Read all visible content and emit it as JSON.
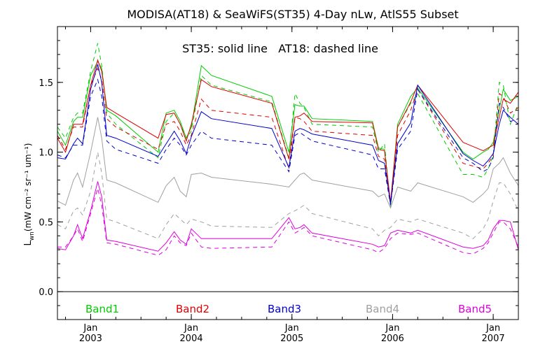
{
  "chart_data": {
    "type": "line",
    "title": "MODISA(AT18) & SeaWiFS(ST35) 4-Day nLw, AtlS55 Subset",
    "annotation": "ST35: solid line   AT18: dashed line",
    "ylabel": "L",
    "ylabel_sub": "wn",
    "ylabel_units": " (mW cm",
    "ylabel_units_full": "(mW cm⁻² sr⁻¹ um⁻¹)",
    "xlim": [
      2002.67,
      2007.25
    ],
    "ylim": [
      -0.2,
      1.9
    ],
    "yticks": [
      0.0,
      0.5,
      1.0,
      1.5
    ],
    "ytick_labels": [
      "0.0",
      "0.5",
      "1.0",
      "1.5"
    ],
    "xticks": [
      {
        "year": 2003,
        "label_top": "Jan",
        "label_bottom": "2003"
      },
      {
        "year": 2004,
        "label_top": "Jan",
        "label_bottom": "2004"
      },
      {
        "year": 2005,
        "label_top": "Jan",
        "label_bottom": "2005"
      },
      {
        "year": 2006,
        "label_top": "Jan",
        "label_bottom": "2006"
      },
      {
        "year": 2007,
        "label_top": "Jan",
        "label_bottom": "2007"
      }
    ],
    "reference_line": 0.0,
    "legend": [
      {
        "name": "Band1",
        "color": "#00cc00"
      },
      {
        "name": "Band2",
        "color": "#dd0000"
      },
      {
        "name": "Band3",
        "color": "#0000cc"
      },
      {
        "name": "Band4",
        "color": "#a0a0a0"
      },
      {
        "name": "Band5",
        "color": "#dd00dd"
      }
    ],
    "x": [
      2002.67,
      2002.75,
      2002.83,
      2002.87,
      2002.92,
      2003.0,
      2003.07,
      2003.11,
      2003.16,
      2003.25,
      2003.67,
      2003.75,
      2003.83,
      2003.89,
      2003.95,
      2004.0,
      2004.1,
      2004.2,
      2004.8,
      2004.97,
      2005.03,
      2005.08,
      2005.12,
      2005.2,
      2005.8,
      2005.86,
      2005.92,
      2005.98,
      2006.05,
      2006.18,
      2006.25,
      2006.7,
      2006.8,
      2006.9,
      2006.95,
      2007.0,
      2007.06,
      2007.1,
      2007.17,
      2007.25
    ],
    "series": [
      {
        "band": 1,
        "sensor": "ST35",
        "color": "#00cc00",
        "dashed": false,
        "values": [
          1.15,
          1.05,
          1.22,
          1.25,
          1.25,
          1.55,
          1.65,
          1.6,
          1.3,
          1.26,
          1.0,
          1.28,
          1.3,
          1.22,
          1.1,
          1.18,
          1.62,
          1.55,
          1.4,
          1.0,
          1.34,
          1.33,
          1.33,
          1.24,
          1.22,
          1.03,
          1.02,
          0.62,
          1.2,
          1.4,
          1.46,
          1.0,
          0.95,
          1.0,
          1.02,
          1.07,
          1.3,
          1.45,
          1.37,
          1.4
        ]
      },
      {
        "band": 1,
        "sensor": "AT18",
        "color": "#00cc00",
        "dashed": true,
        "values": [
          1.18,
          1.1,
          1.25,
          1.28,
          1.28,
          1.58,
          1.78,
          1.62,
          1.28,
          1.2,
          0.96,
          1.22,
          1.28,
          1.2,
          1.1,
          1.15,
          1.55,
          1.48,
          1.36,
          0.96,
          1.42,
          1.35,
          1.32,
          1.2,
          1.18,
          1.0,
          1.06,
          0.6,
          1.18,
          1.35,
          1.42,
          0.84,
          0.84,
          0.82,
          0.88,
          0.98,
          1.5,
          1.48,
          1.2,
          1.35
        ]
      },
      {
        "band": 2,
        "sensor": "ST35",
        "color": "#dd0000",
        "dashed": false,
        "values": [
          1.1,
          1.0,
          1.2,
          1.2,
          1.2,
          1.48,
          1.66,
          1.58,
          1.32,
          1.28,
          1.1,
          1.27,
          1.28,
          1.2,
          1.08,
          1.2,
          1.52,
          1.47,
          1.35,
          0.95,
          1.25,
          1.26,
          1.28,
          1.22,
          1.21,
          1.02,
          1.01,
          0.64,
          1.18,
          1.36,
          1.48,
          1.07,
          1.04,
          1.01,
          1.03,
          1.05,
          1.25,
          1.38,
          1.35,
          1.43
        ]
      },
      {
        "band": 2,
        "sensor": "AT18",
        "color": "#dd0000",
        "dashed": true,
        "values": [
          1.12,
          1.02,
          1.18,
          1.18,
          1.18,
          1.48,
          1.6,
          1.52,
          1.24,
          1.18,
          1.02,
          1.2,
          1.22,
          1.15,
          1.05,
          1.12,
          1.38,
          1.3,
          1.25,
          0.88,
          1.25,
          1.24,
          1.22,
          1.15,
          1.12,
          0.97,
          0.95,
          0.62,
          1.12,
          1.3,
          1.45,
          0.92,
          0.9,
          0.88,
          0.92,
          0.98,
          1.42,
          1.4,
          1.28,
          1.32
        ]
      },
      {
        "band": 3,
        "sensor": "ST35",
        "color": "#0000cc",
        "dashed": false,
        "values": [
          0.96,
          0.95,
          1.06,
          1.1,
          1.06,
          1.45,
          1.63,
          1.5,
          1.12,
          1.1,
          0.97,
          1.06,
          1.15,
          1.08,
          0.99,
          1.11,
          1.29,
          1.24,
          1.17,
          0.89,
          1.15,
          1.17,
          1.16,
          1.13,
          1.05,
          0.94,
          0.92,
          0.63,
          1.06,
          1.21,
          1.48,
          0.99,
          0.94,
          0.9,
          0.94,
          0.99,
          1.2,
          1.3,
          1.25,
          1.2
        ]
      },
      {
        "band": 3,
        "sensor": "AT18",
        "color": "#0000cc",
        "dashed": true,
        "values": [
          0.98,
          0.96,
          1.05,
          1.05,
          1.05,
          1.4,
          1.52,
          1.4,
          1.08,
          1.02,
          0.92,
          1.02,
          1.1,
          1.05,
          0.98,
          1.05,
          1.15,
          1.1,
          1.05,
          0.86,
          1.12,
          1.14,
          1.12,
          1.08,
          0.98,
          0.88,
          0.88,
          0.62,
          1.02,
          1.15,
          1.45,
          0.96,
          0.92,
          0.86,
          0.88,
          0.96,
          1.35,
          1.32,
          1.22,
          1.24
        ]
      },
      {
        "band": 4,
        "sensor": "ST35",
        "color": "#a0a0a0",
        "dashed": false,
        "values": [
          0.65,
          0.62,
          0.8,
          0.85,
          0.75,
          1.0,
          1.25,
          1.1,
          0.8,
          0.78,
          0.64,
          0.76,
          0.82,
          0.72,
          0.68,
          0.84,
          0.85,
          0.82,
          0.77,
          0.75,
          0.8,
          0.84,
          0.85,
          0.8,
          0.72,
          0.68,
          0.7,
          0.6,
          0.75,
          0.72,
          0.78,
          0.68,
          0.64,
          0.7,
          0.74,
          0.88,
          0.92,
          0.96,
          0.85,
          0.76
        ]
      },
      {
        "band": 4,
        "sensor": "AT18",
        "color": "#a0a0a0",
        "dashed": true,
        "values": [
          0.48,
          0.45,
          0.58,
          0.6,
          0.55,
          0.72,
          1.0,
          0.85,
          0.52,
          0.5,
          0.38,
          0.48,
          0.56,
          0.52,
          0.48,
          0.52,
          0.5,
          0.47,
          0.46,
          0.56,
          0.58,
          0.6,
          0.62,
          0.56,
          0.45,
          0.4,
          0.44,
          0.46,
          0.52,
          0.5,
          0.52,
          0.42,
          0.38,
          0.45,
          0.52,
          0.65,
          0.78,
          0.78,
          0.7,
          0.58
        ]
      },
      {
        "band": 5,
        "sensor": "ST35",
        "color": "#dd00dd",
        "dashed": false,
        "values": [
          0.31,
          0.3,
          0.4,
          0.48,
          0.38,
          0.58,
          0.79,
          0.68,
          0.37,
          0.36,
          0.29,
          0.35,
          0.43,
          0.37,
          0.34,
          0.45,
          0.38,
          0.38,
          0.38,
          0.53,
          0.45,
          0.46,
          0.48,
          0.42,
          0.34,
          0.32,
          0.33,
          0.42,
          0.44,
          0.42,
          0.44,
          0.32,
          0.31,
          0.33,
          0.37,
          0.45,
          0.51,
          0.51,
          0.5,
          0.3
        ]
      },
      {
        "band": 5,
        "sensor": "AT18",
        "color": "#dd00dd",
        "dashed": true,
        "values": [
          0.32,
          0.32,
          0.4,
          0.45,
          0.36,
          0.56,
          0.74,
          0.62,
          0.35,
          0.34,
          0.26,
          0.3,
          0.4,
          0.35,
          0.33,
          0.42,
          0.32,
          0.31,
          0.32,
          0.5,
          0.42,
          0.44,
          0.46,
          0.4,
          0.3,
          0.28,
          0.31,
          0.38,
          0.42,
          0.41,
          0.42,
          0.28,
          0.27,
          0.31,
          0.35,
          0.42,
          0.5,
          0.5,
          0.45,
          0.32
        ]
      }
    ]
  }
}
